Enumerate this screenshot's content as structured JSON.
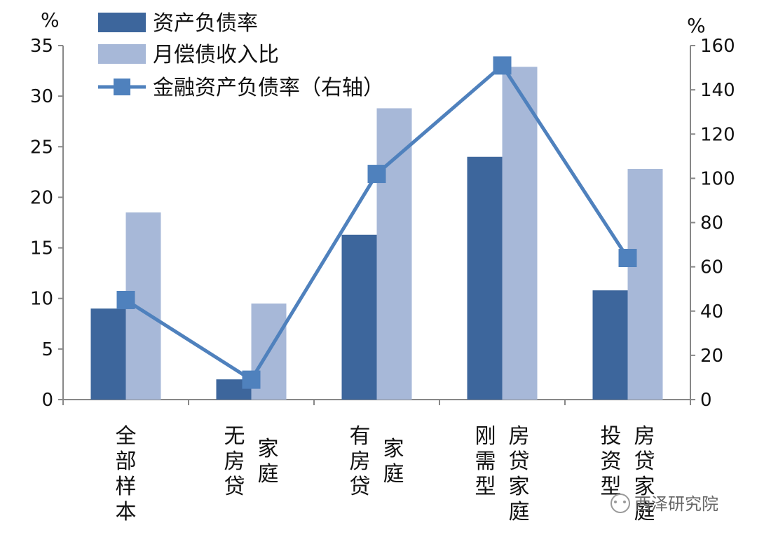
{
  "chart_data": {
    "type": "bar",
    "categories": [
      [
        "全部样本"
      ],
      [
        "无房贷",
        "家庭"
      ],
      [
        "有房贷",
        "家庭"
      ],
      [
        "刚需型",
        "房贷家庭"
      ],
      [
        "投资型",
        "房贷家庭"
      ]
    ],
    "series": [
      {
        "name": "资产负债率",
        "type": "bar",
        "axis": "left",
        "color": "#3d669c",
        "values": [
          9.0,
          2.0,
          16.3,
          24.0,
          10.8
        ]
      },
      {
        "name": "月偿债收入比",
        "type": "bar",
        "axis": "left",
        "color": "#a7b8d8",
        "values": [
          18.5,
          9.5,
          28.8,
          32.9,
          22.8
        ]
      },
      {
        "name": "金融资产负债率（右轴）",
        "type": "line",
        "axis": "right",
        "color": "#4f81bd",
        "values": [
          45,
          9,
          102,
          151,
          64
        ]
      }
    ],
    "y_left": {
      "unit": "%",
      "ylim": [
        0,
        35
      ],
      "ticks": [
        0,
        5,
        10,
        15,
        20,
        25,
        30,
        35
      ]
    },
    "y_right": {
      "unit": "%",
      "ylim": [
        0,
        160
      ],
      "ticks": [
        0,
        20,
        40,
        60,
        80,
        100,
        120,
        140,
        160
      ]
    },
    "legend_position": "top-left",
    "grid": false
  },
  "watermark": "西泽研究院"
}
